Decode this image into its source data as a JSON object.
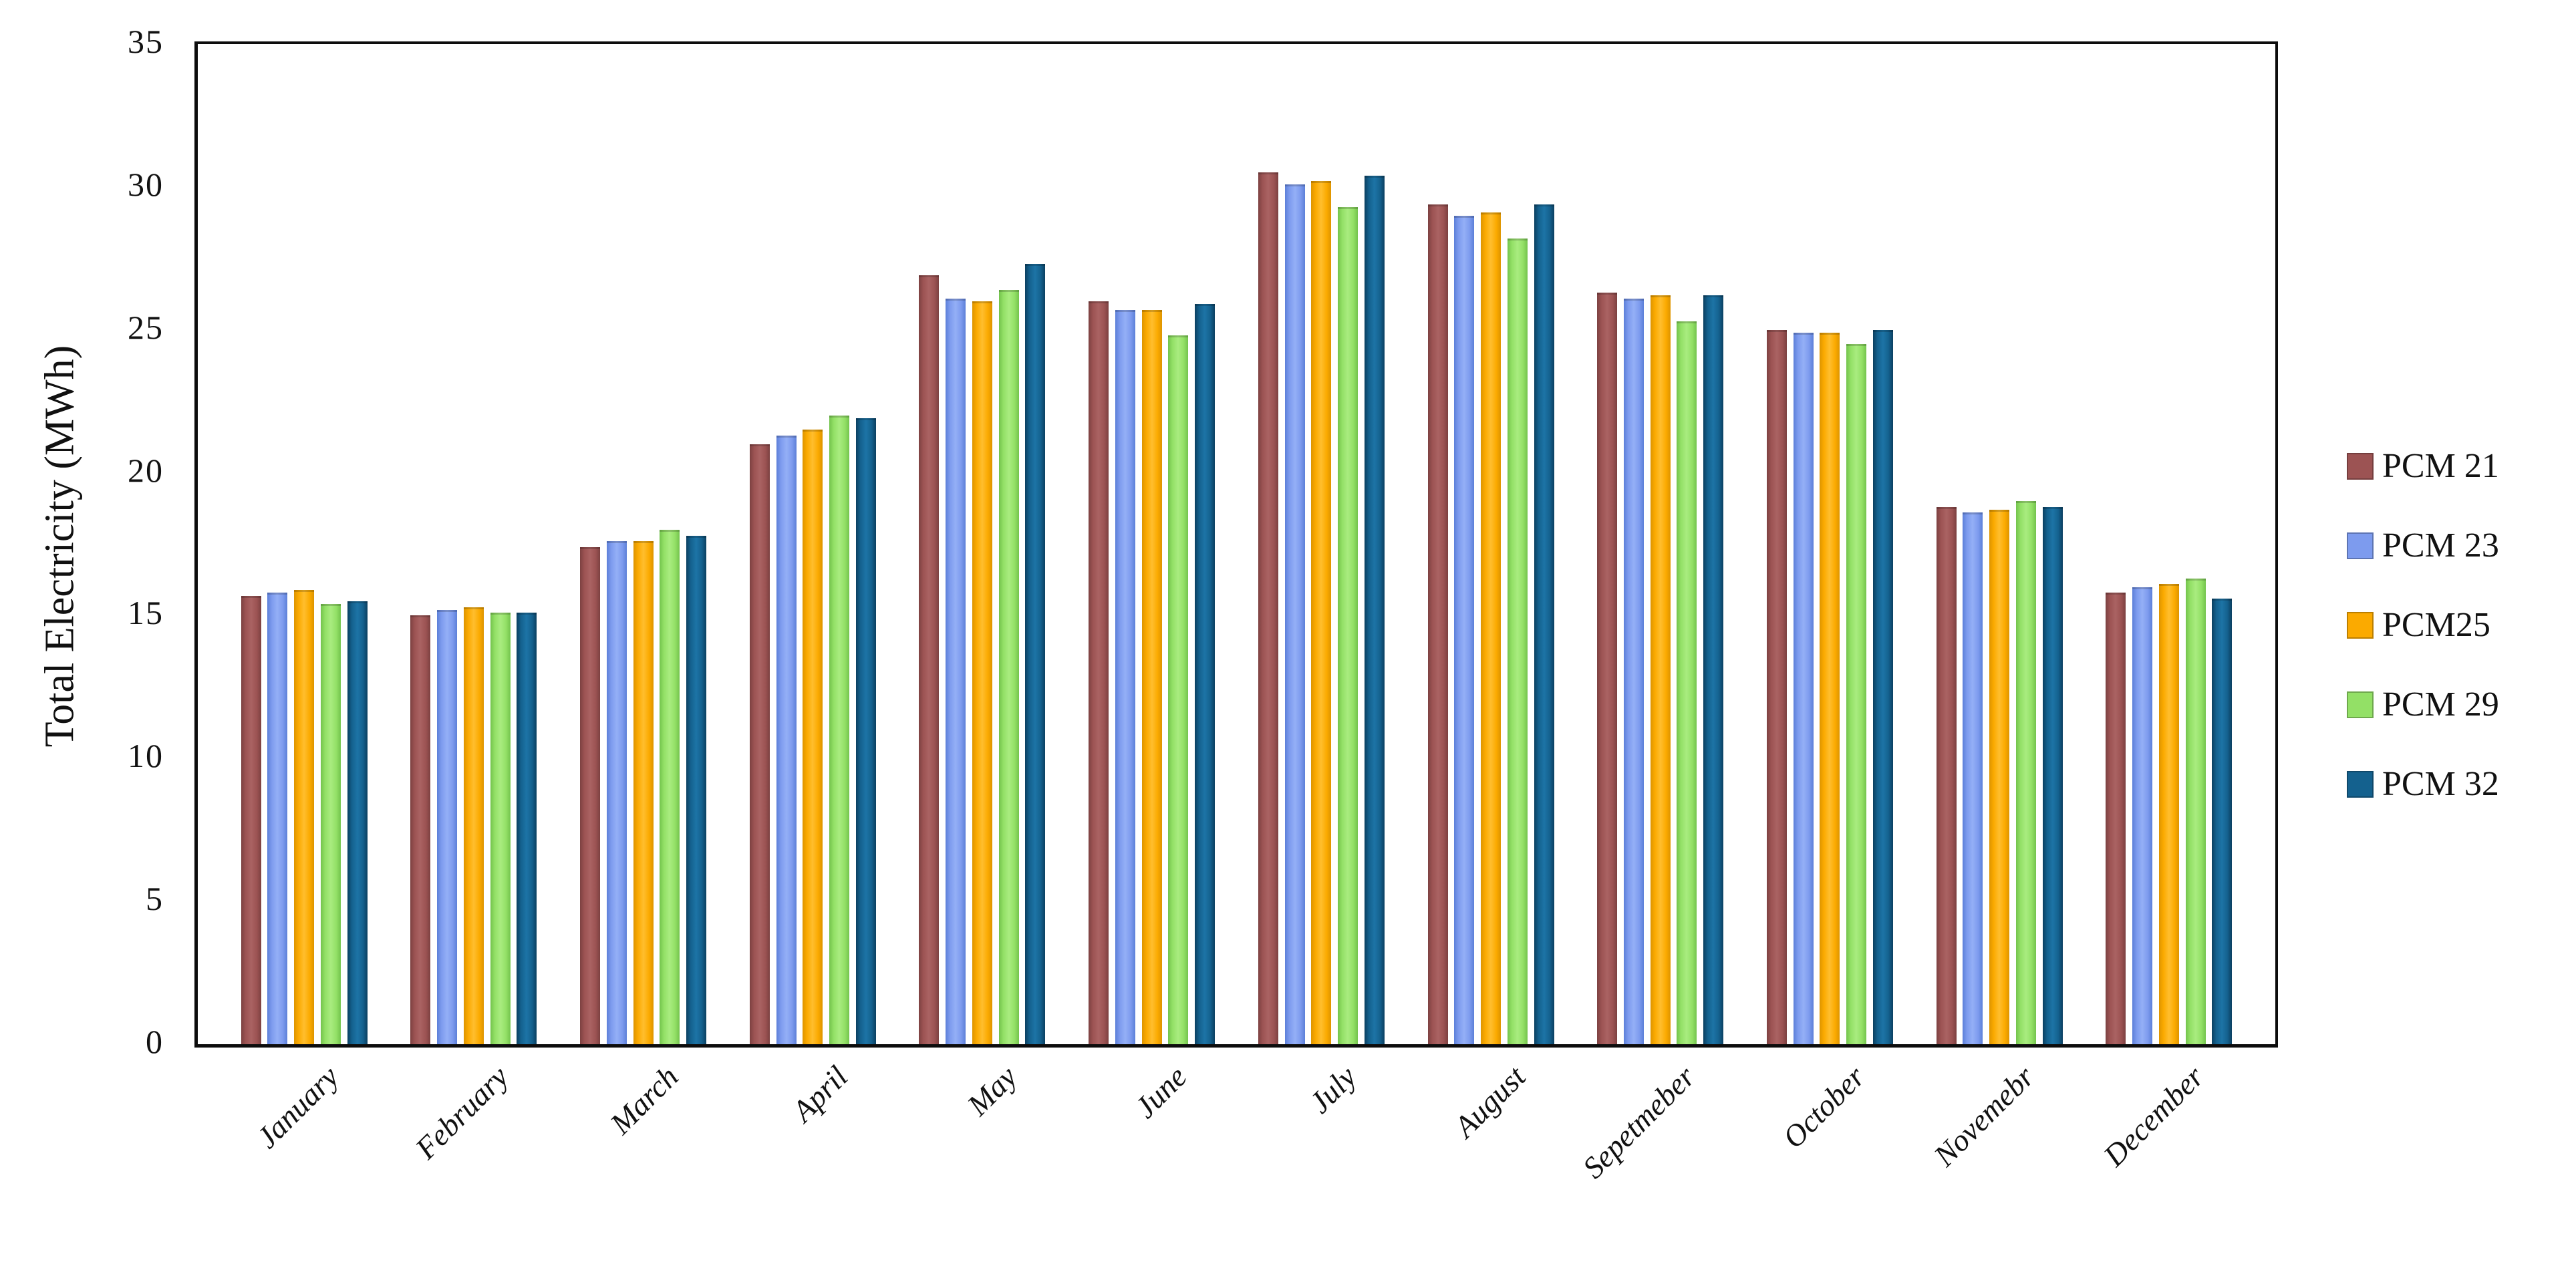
{
  "chart_data": {
    "type": "bar",
    "title": "",
    "xlabel": "",
    "ylabel": "Total Electricity (MWh)",
    "ylim": [
      0,
      35
    ],
    "yticks": [
      0,
      5,
      10,
      15,
      20,
      25,
      30,
      35
    ],
    "grid": false,
    "legend_position": "right",
    "categories": [
      "January",
      "February",
      "March",
      "April",
      "May",
      "June",
      "July",
      "August",
      "Sepetmeber",
      "October",
      "Novemebr",
      "December"
    ],
    "series": [
      {
        "name": "PCM 21",
        "color": "#9C5353",
        "color_light": "#AA6363",
        "color_dark": "#7C4141",
        "values": [
          15.7,
          15.0,
          17.4,
          21.0,
          26.9,
          26.0,
          30.5,
          29.4,
          26.3,
          25.0,
          18.8,
          15.8
        ]
      },
      {
        "name": "PCM 23",
        "color": "#7D9BEE",
        "color_light": "#94AFF6",
        "color_dark": "#5C7FD8",
        "values": [
          15.8,
          15.2,
          17.6,
          21.3,
          26.1,
          25.7,
          30.1,
          29.0,
          26.1,
          24.9,
          18.6,
          16.0
        ]
      },
      {
        "name": "PCM25",
        "color": "#FBAA00",
        "color_light": "#FFBE2E",
        "color_dark": "#DD9400",
        "values": [
          15.9,
          15.3,
          17.6,
          21.5,
          26.0,
          25.7,
          30.2,
          29.1,
          26.2,
          24.9,
          18.7,
          16.1
        ]
      },
      {
        "name": "PCM 29",
        "color": "#93E066",
        "color_light": "#A9EC80",
        "color_dark": "#73C34D",
        "values": [
          15.4,
          15.1,
          18.0,
          22.0,
          26.4,
          24.8,
          29.3,
          28.2,
          25.3,
          24.5,
          19.0,
          16.3
        ]
      },
      {
        "name": "PCM 32",
        "color": "#14618E",
        "color_light": "#1D74A6",
        "color_dark": "#0B3F60",
        "values": [
          15.5,
          15.1,
          17.8,
          21.9,
          27.3,
          25.9,
          30.4,
          29.4,
          26.2,
          25.0,
          18.8,
          15.6
        ]
      }
    ]
  }
}
